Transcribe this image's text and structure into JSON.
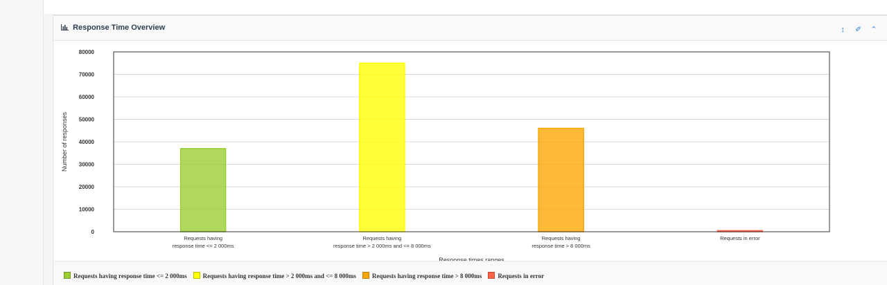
{
  "panel": {
    "title": "Response Time Overview",
    "tools": {
      "resize_icon": "resize-vertical-icon",
      "settings_icon": "wrench-icon",
      "collapse_icon": "chevron-up-icon"
    }
  },
  "colors": {
    "title": "#2e3c4f",
    "tool_icons": "#3a7dcf",
    "series": [
      "#9acd32",
      "#ffff00",
      "#ffa500",
      "#ff6347"
    ]
  },
  "chart_data": {
    "type": "bar",
    "categories": [
      [
        "Requests having",
        "response time <= 2 000ms"
      ],
      [
        "Requests having",
        "response time > 2 000ms and <= 8 000ms"
      ],
      [
        "Requests having",
        "response time > 8 000ms"
      ],
      [
        "Requests in error"
      ]
    ],
    "values": [
      37000,
      75000,
      46000,
      500
    ],
    "xlabel": "Response times ranges",
    "ylabel": "Number of responses",
    "ylim": [
      0,
      80000
    ],
    "yticks": [
      0,
      10000,
      20000,
      30000,
      40000,
      50000,
      60000,
      70000,
      80000
    ],
    "grid": true
  },
  "legend": [
    "Requests having response time <= 2 000ms",
    "Requests having response time > 2 000ms and <= 8 000ms",
    "Requests having response time > 8 000ms",
    "Requests in error"
  ]
}
